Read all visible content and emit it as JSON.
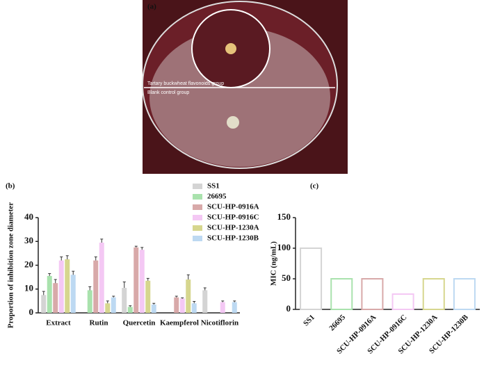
{
  "panel_labels": [
    "(a)",
    "(b)",
    "(c)"
  ],
  "photo": {
    "labels": [
      "Tartary buckwheat flavonoids group",
      "Blank control group"
    ]
  },
  "chart_data": [
    {
      "type": "bar",
      "ylabel": "Proportion of inhibition zone diameter",
      "categories": [
        "Extract",
        "Rutin",
        "Quercetin",
        "Kaempferol",
        "Nicotiflorin"
      ],
      "series": [
        {
          "name": "SS1",
          "color": "#d4d4d4",
          "values": [
            7.5,
            null,
            10.5,
            null,
            9.5
          ],
          "errors": [
            1.5,
            null,
            2.5,
            null,
            1
          ]
        },
        {
          "name": "26695",
          "color": "#a9e2ad",
          "values": [
            15.5,
            9.5,
            2.5,
            null,
            null
          ],
          "errors": [
            1,
            1.5,
            0.5,
            null,
            null
          ]
        },
        {
          "name": "SCU-HP-0916A",
          "color": "#d8a9a9",
          "values": [
            12.5,
            22,
            27.5,
            6.5,
            null
          ],
          "errors": [
            1.5,
            1.5,
            0.5,
            0.5,
            null
          ]
        },
        {
          "name": "SCU-HP-0916C",
          "color": "#f4c8f4",
          "values": [
            22,
            29.5,
            26.5,
            6,
            4.5
          ],
          "errors": [
            1.5,
            1.5,
            1,
            0.3,
            0.5
          ]
        },
        {
          "name": "SCU-HP-1230A",
          "color": "#d6d68e",
          "values": [
            22.5,
            4,
            13.5,
            14,
            null
          ],
          "errors": [
            1.5,
            1,
            1,
            2,
            null
          ]
        },
        {
          "name": "SCU-HP-1230B",
          "color": "#bdd9f2",
          "values": [
            16,
            6.5,
            3.5,
            4,
            4.5
          ],
          "errors": [
            1.5,
            0.5,
            0.5,
            0.8,
            0.5
          ]
        }
      ],
      "ylim": [
        0,
        40
      ],
      "yticks": [
        0,
        10,
        20,
        30,
        40
      ],
      "bar_style": "filled"
    },
    {
      "type": "bar",
      "ylabel": "MIC (ng/mL)",
      "categories": [
        "SS1",
        "26695",
        "SCU-HP-0916A",
        "SCU-HP-0916C",
        "SCU-HP-1230A",
        "SCU-HP-1230B"
      ],
      "values": [
        100,
        50,
        50,
        25,
        50,
        50
      ],
      "colors": [
        "#d4d4d4",
        "#a9e2ad",
        "#d8a9a9",
        "#f4c8f4",
        "#d6d68e",
        "#bdd9f2"
      ],
      "ylim": [
        0,
        150
      ],
      "yticks": [
        0,
        50,
        100,
        150
      ],
      "bar_style": "outline"
    }
  ]
}
